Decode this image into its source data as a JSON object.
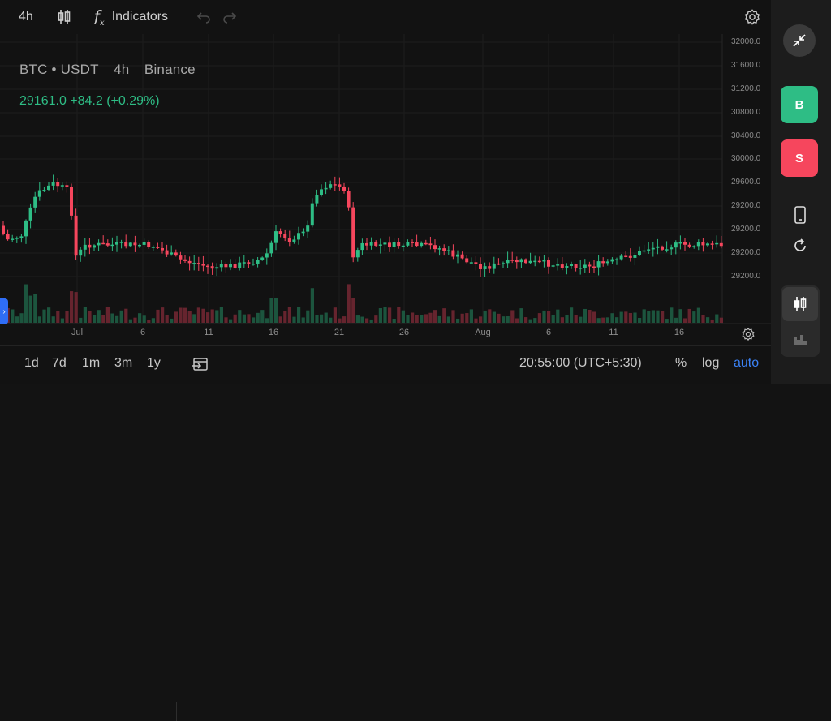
{
  "toolbar": {
    "interval": "4h",
    "indicators": "Indicators"
  },
  "header": {
    "symbol": "BTC • USDT",
    "interval": "4h",
    "exchange": "Binance",
    "price_change": "29161.0 +84.2 (+0.29%)"
  },
  "y_axis": [
    "32000.0",
    "31600.0",
    "31200.0",
    "30800.0",
    "30400.0",
    "30000.0",
    "29600.0",
    "29200.0",
    "29200.0",
    "29200.0",
    "29200.0"
  ],
  "x_axis": [
    "Jul",
    "6",
    "11",
    "16",
    "21",
    "26",
    "Aug",
    "6",
    "11",
    "16"
  ],
  "bottom": {
    "ranges": [
      "1d",
      "7d",
      "1m",
      "3m",
      "1y"
    ],
    "time": "20:55:00 (UTC+5:30)",
    "percent": "%",
    "log": "log",
    "auto": "auto"
  },
  "side": {
    "buy": "B",
    "sell": "S"
  },
  "colors": {
    "up": "#2ebd85",
    "down": "#f6465d",
    "accent": "#3b82f6"
  }
}
